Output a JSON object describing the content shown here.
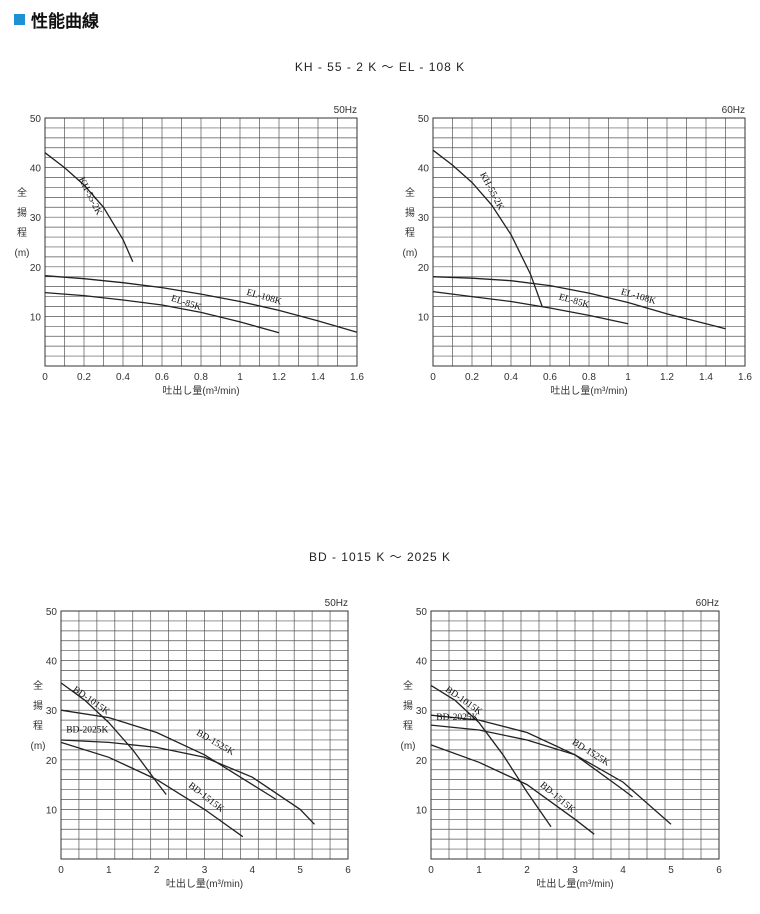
{
  "heading": {
    "text": "性能曲線",
    "icon": "square-bullet-icon",
    "icon_color": "#1f8fd6"
  },
  "groups": [
    {
      "title": "KH - 55 - 2 K ～ EL - 108 K"
    },
    {
      "title": "BD - 1015 K ～ 2025 K"
    }
  ],
  "chart_data": [
    {
      "type": "line",
      "freq": "50Hz",
      "xlabel": "吐出し量(m³/min)",
      "ylabel_chars": [
        "全",
        "揚",
        "程",
        "(m)"
      ],
      "xlim": [
        0,
        1.6
      ],
      "ylim": [
        0,
        50
      ],
      "x_ticks": [
        "0",
        "0.2",
        "0.4",
        "0.6",
        "0.8",
        "1",
        "1.2",
        "1.4",
        "1.6"
      ],
      "y_ticks": [
        "10",
        "20",
        "30",
        "40",
        "50"
      ],
      "grid": true,
      "series": [
        {
          "name": "KH-55-2K",
          "x": [
            0,
            0.1,
            0.2,
            0.3,
            0.4,
            0.45
          ],
          "y": [
            43,
            40,
            36.5,
            32,
            25.5,
            21
          ]
        },
        {
          "name": "EL-85K",
          "x": [
            0,
            0.2,
            0.4,
            0.6,
            0.8,
            1.0,
            1.2
          ],
          "y": [
            14.8,
            14.2,
            13.3,
            12.3,
            10.8,
            8.9,
            6.7
          ]
        },
        {
          "name": "EL-108K",
          "x": [
            0,
            0.2,
            0.4,
            0.6,
            0.8,
            1.0,
            1.2,
            1.4,
            1.6
          ],
          "y": [
            18.2,
            17.6,
            16.8,
            15.8,
            14.5,
            13.0,
            11.2,
            9.1,
            6.8
          ]
        }
      ]
    },
    {
      "type": "line",
      "freq": "60Hz",
      "xlabel": "吐出し量(m³/min)",
      "ylabel_chars": [
        "全",
        "揚",
        "程",
        "(m)"
      ],
      "xlim": [
        0,
        1.6
      ],
      "ylim": [
        0,
        50
      ],
      "x_ticks": [
        "0",
        "0.2",
        "0.4",
        "0.6",
        "0.8",
        "1",
        "1.2",
        "1.4",
        "1.6"
      ],
      "y_ticks": [
        "10",
        "20",
        "30",
        "40",
        "50"
      ],
      "grid": true,
      "series": [
        {
          "name": "KH-55-2K",
          "x": [
            0,
            0.1,
            0.2,
            0.3,
            0.4,
            0.5,
            0.56
          ],
          "y": [
            43.5,
            40.5,
            37,
            32.5,
            26.5,
            18.5,
            12
          ]
        },
        {
          "name": "EL-85K",
          "x": [
            0,
            0.2,
            0.4,
            0.6,
            0.8,
            1.0
          ],
          "y": [
            15,
            14,
            13,
            11.7,
            10.2,
            8.5
          ]
        },
        {
          "name": "EL-108K",
          "x": [
            0,
            0.2,
            0.4,
            0.6,
            0.8,
            1.0,
            1.2,
            1.4,
            1.5
          ],
          "y": [
            18,
            17.7,
            17.2,
            16.2,
            14.7,
            12.8,
            10.5,
            8.5,
            7.5
          ]
        }
      ]
    },
    {
      "type": "line",
      "freq": "50Hz",
      "xlabel": "吐出し量(m³/min)",
      "ylabel_chars": [
        "全",
        "揚",
        "程",
        "(m)"
      ],
      "xlim": [
        0,
        6
      ],
      "ylim": [
        0,
        50
      ],
      "x_ticks": [
        "0",
        "1",
        "2",
        "3",
        "4",
        "5",
        "6"
      ],
      "y_ticks": [
        "10",
        "20",
        "30",
        "40",
        "50"
      ],
      "grid": true,
      "series": [
        {
          "name": "BD-1015K",
          "x": [
            0,
            0.5,
            1.0,
            1.5,
            2.0,
            2.2
          ],
          "y": [
            35.5,
            32,
            27.5,
            22,
            15.5,
            13
          ]
        },
        {
          "name": "BD-1525K",
          "x": [
            0,
            1,
            2,
            3,
            4,
            4.5
          ],
          "y": [
            30,
            28.5,
            25.5,
            21,
            15,
            12
          ]
        },
        {
          "name": "BD-1515K",
          "x": [
            0,
            1,
            2,
            3,
            3.8
          ],
          "y": [
            23.5,
            20.5,
            16,
            10,
            4.5
          ]
        },
        {
          "name": "BD-2025K",
          "x": [
            0,
            1,
            2,
            3,
            4,
            5,
            5.3
          ],
          "y": [
            24,
            23.5,
            22.5,
            20.5,
            16.5,
            10,
            7
          ]
        }
      ]
    },
    {
      "type": "line",
      "freq": "60Hz",
      "xlabel": "吐出し量(m³/min)",
      "ylabel_chars": [
        "全",
        "揚",
        "程",
        "(m)"
      ],
      "xlim": [
        0,
        6
      ],
      "ylim": [
        0,
        50
      ],
      "x_ticks": [
        "0",
        "1",
        "2",
        "3",
        "4",
        "5",
        "6"
      ],
      "y_ticks": [
        "10",
        "20",
        "30",
        "40",
        "50"
      ],
      "grid": true,
      "series": [
        {
          "name": "BD-1015K",
          "x": [
            0,
            0.5,
            1.0,
            1.5,
            2.0,
            2.5
          ],
          "y": [
            35,
            32,
            27.5,
            21,
            13.5,
            6.5
          ]
        },
        {
          "name": "BD-1525K",
          "x": [
            0,
            1,
            2,
            3,
            4,
            4.2
          ],
          "y": [
            29,
            28,
            25.5,
            21,
            14,
            12.5
          ]
        },
        {
          "name": "BD-1515K",
          "x": [
            0,
            1,
            2,
            3,
            3.4
          ],
          "y": [
            23,
            19.5,
            15,
            8,
            5
          ]
        },
        {
          "name": "BD-2025K",
          "x": [
            0,
            1,
            2,
            3,
            4,
            5
          ],
          "y": [
            27,
            26,
            24,
            21,
            15.5,
            7
          ]
        }
      ]
    }
  ]
}
